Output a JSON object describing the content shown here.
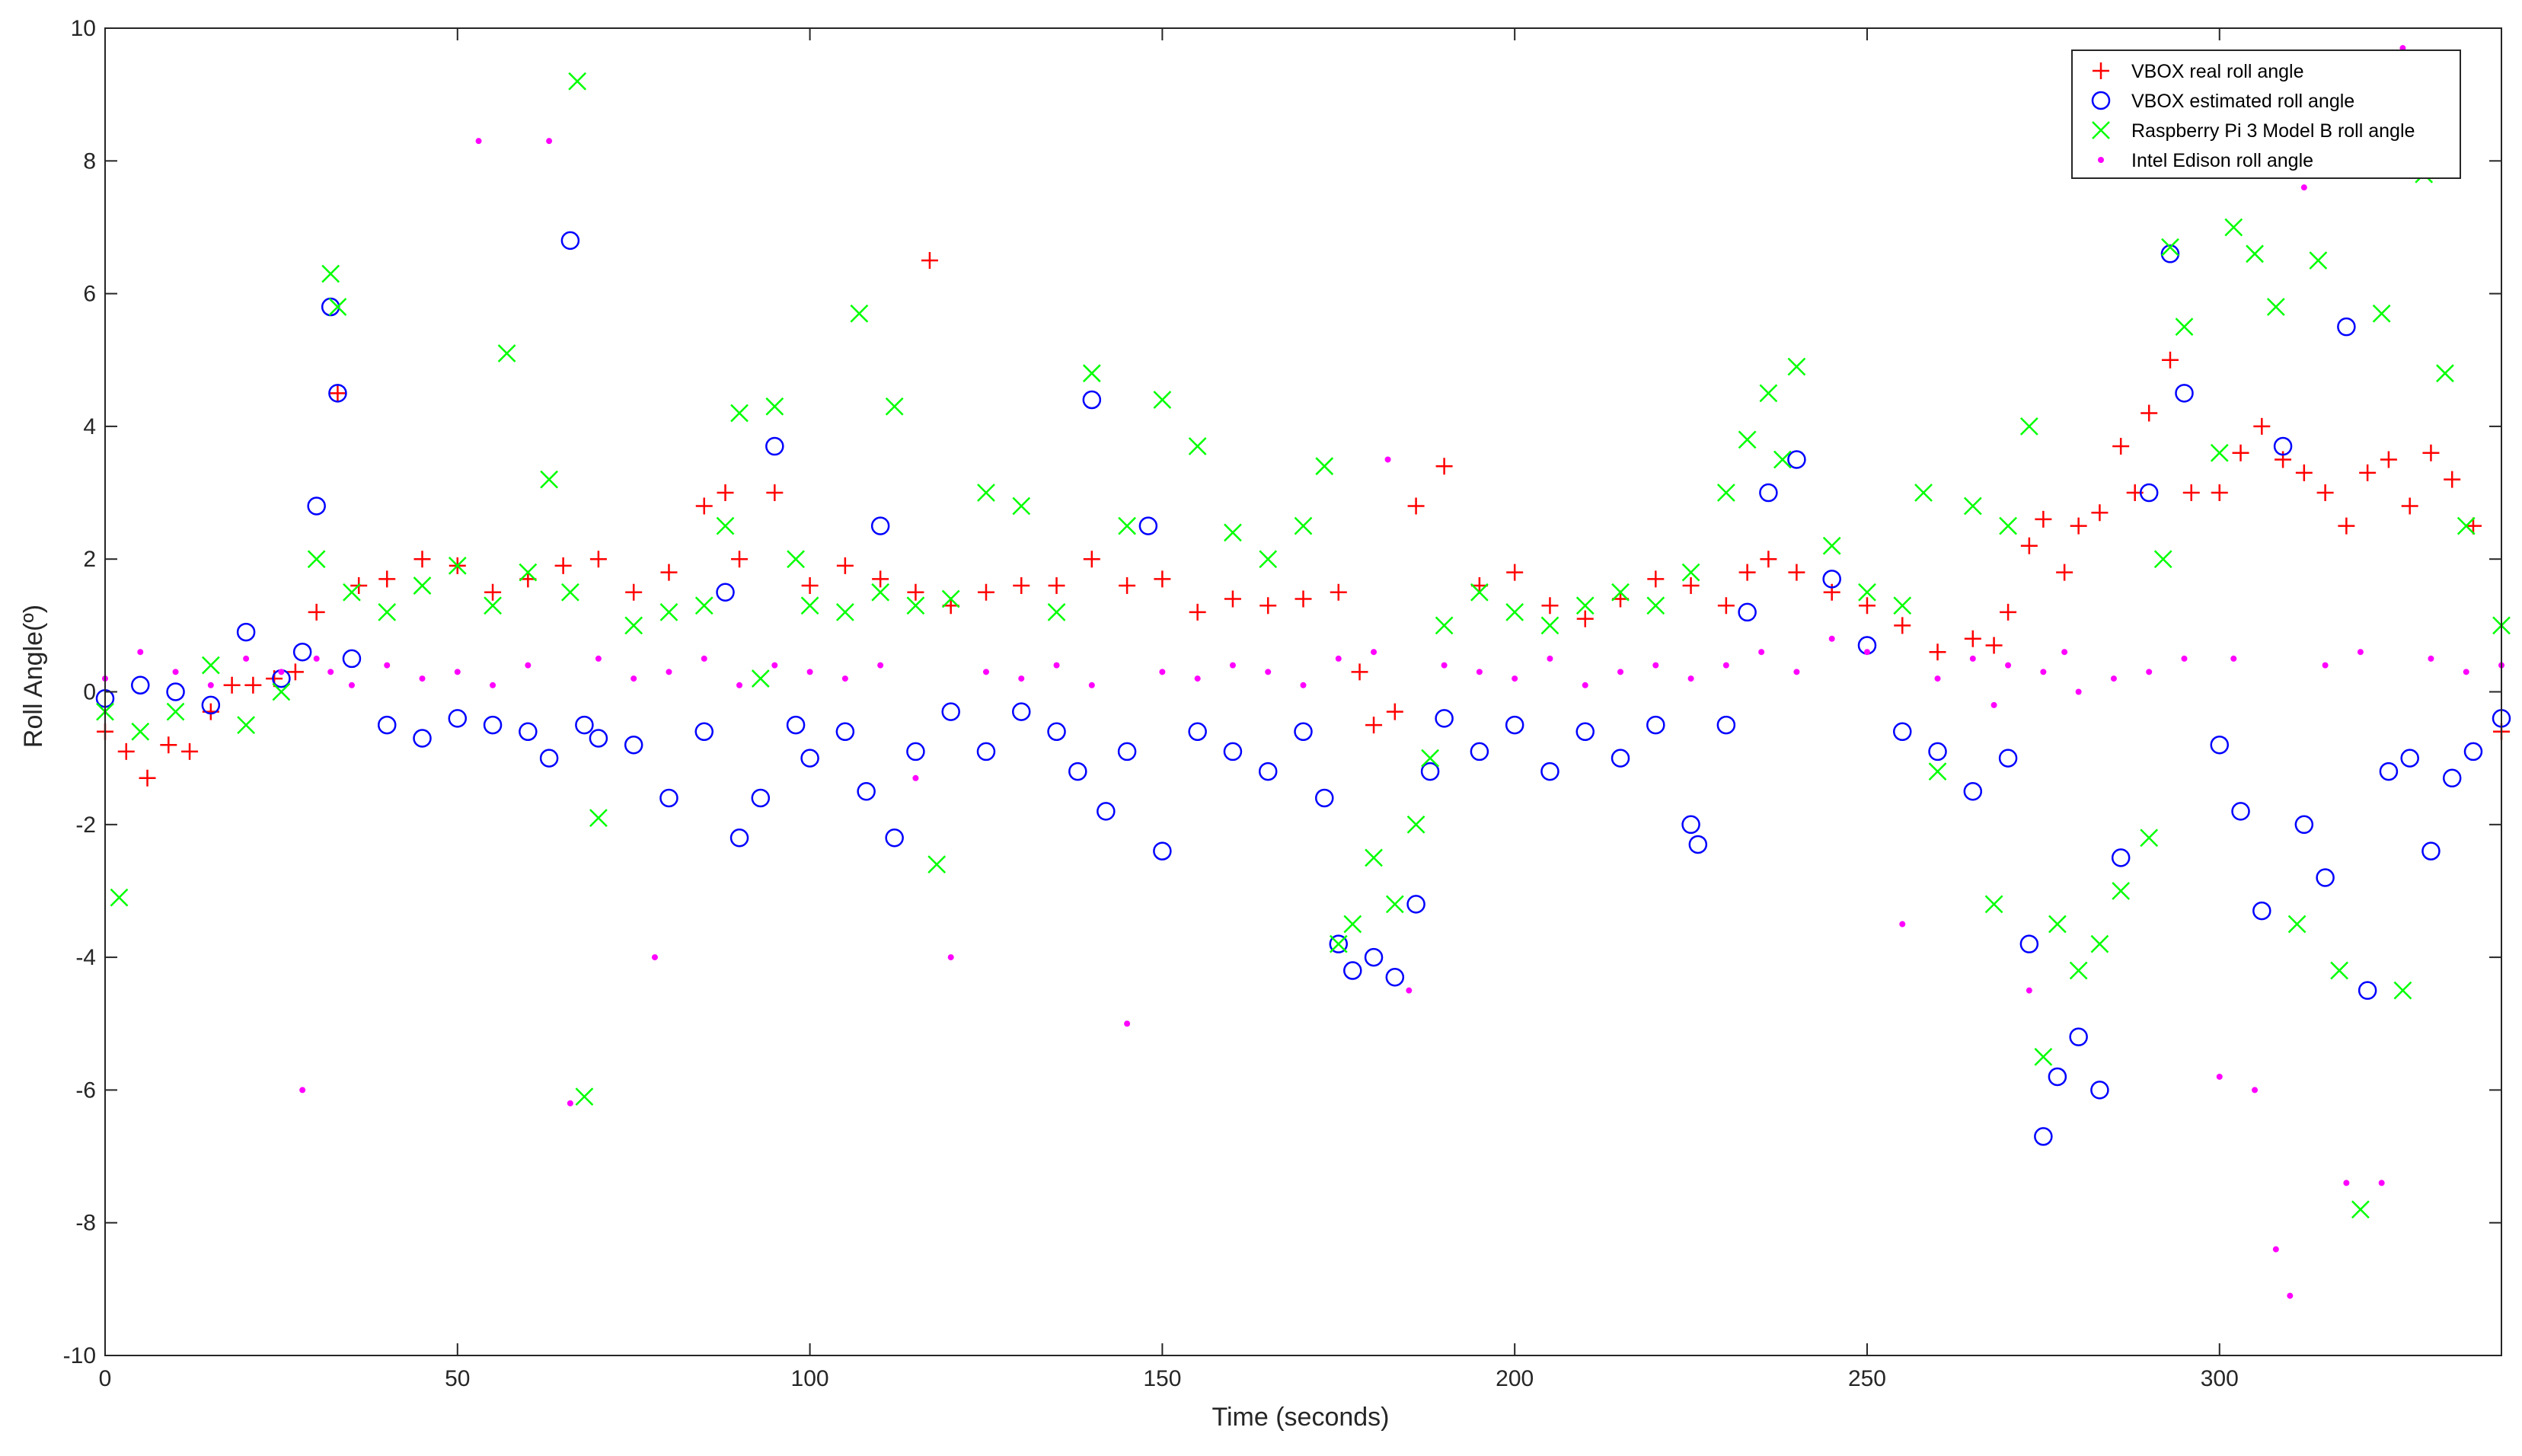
{
  "chart_data": {
    "type": "scatter",
    "title": "",
    "xlabel": "Time (seconds)",
    "ylabel": "Roll Angle(º)",
    "xlim": [
      0,
      340
    ],
    "ylim": [
      -10,
      10
    ],
    "xticks": [
      0,
      50,
      100,
      150,
      200,
      250,
      300
    ],
    "yticks": [
      -10,
      -8,
      -6,
      -4,
      -2,
      0,
      2,
      4,
      6,
      8,
      10
    ],
    "grid": false,
    "legend_position": "top-right",
    "series": [
      {
        "name": "VBOX real roll angle",
        "marker": "+",
        "color": "#ff0000",
        "x": [
          0,
          3,
          6,
          9,
          12,
          15,
          18,
          21,
          24,
          27,
          30,
          33,
          36,
          40,
          45,
          50,
          55,
          60,
          65,
          70,
          75,
          80,
          85,
          88,
          90,
          95,
          100,
          105,
          110,
          115,
          117,
          120,
          125,
          130,
          135,
          140,
          145,
          150,
          155,
          160,
          165,
          170,
          175,
          178,
          180,
          183,
          186,
          190,
          195,
          200,
          205,
          210,
          215,
          220,
          225,
          230,
          233,
          236,
          240,
          245,
          250,
          255,
          260,
          265,
          268,
          270,
          273,
          275,
          278,
          280,
          283,
          286,
          288,
          290,
          293,
          296,
          300,
          303,
          306,
          309,
          312,
          315,
          318,
          321,
          324,
          327,
          330,
          333,
          336,
          340
        ],
        "y": [
          -0.6,
          -0.9,
          -1.3,
          -0.8,
          -0.9,
          -0.3,
          0.1,
          0.1,
          0.2,
          0.3,
          1.2,
          4.5,
          1.6,
          1.7,
          2.0,
          1.9,
          1.5,
          1.7,
          1.9,
          2.0,
          1.5,
          1.8,
          2.8,
          3.0,
          2.0,
          3.0,
          1.6,
          1.9,
          1.7,
          1.5,
          6.5,
          1.3,
          1.5,
          1.6,
          1.6,
          2.0,
          1.6,
          1.7,
          1.2,
          1.4,
          1.3,
          1.4,
          1.5,
          0.3,
          -0.5,
          -0.3,
          2.8,
          3.4,
          1.6,
          1.8,
          1.3,
          1.1,
          1.4,
          1.7,
          1.6,
          1.3,
          1.8,
          2.0,
          1.8,
          1.5,
          1.3,
          1.0,
          0.6,
          0.8,
          0.7,
          1.2,
          2.2,
          2.6,
          1.8,
          2.5,
          2.7,
          3.7,
          3.0,
          4.2,
          5.0,
          3.0,
          3.0,
          3.6,
          4.0,
          3.5,
          3.3,
          3.0,
          2.5,
          3.3,
          3.5,
          2.8,
          3.6,
          3.2,
          2.5,
          -0.6
        ]
      },
      {
        "name": "VBOX  estimated roll angle",
        "marker": "o",
        "color": "#0000ff",
        "x": [
          0,
          5,
          10,
          15,
          20,
          25,
          28,
          30,
          32,
          33,
          35,
          40,
          45,
          50,
          55,
          60,
          63,
          66,
          68,
          70,
          75,
          80,
          85,
          88,
          90,
          93,
          95,
          98,
          100,
          105,
          108,
          110,
          112,
          115,
          120,
          125,
          130,
          135,
          138,
          140,
          142,
          145,
          148,
          150,
          155,
          160,
          165,
          170,
          173,
          175,
          177,
          180,
          183,
          186,
          188,
          190,
          195,
          200,
          205,
          210,
          215,
          220,
          225,
          226,
          230,
          233,
          236,
          240,
          245,
          250,
          255,
          260,
          265,
          270,
          273,
          275,
          277,
          280,
          283,
          286,
          290,
          293,
          295,
          300,
          303,
          306,
          309,
          312,
          315,
          318,
          321,
          324,
          327,
          330,
          333,
          336,
          340
        ],
        "y": [
          -0.1,
          0.1,
          0.0,
          -0.2,
          0.9,
          0.2,
          0.6,
          2.8,
          5.8,
          4.5,
          0.5,
          -0.5,
          -0.7,
          -0.4,
          -0.5,
          -0.6,
          -1.0,
          6.8,
          -0.5,
          -0.7,
          -0.8,
          -1.6,
          -0.6,
          1.5,
          -2.2,
          -1.6,
          3.7,
          -0.5,
          -1.0,
          -0.6,
          -1.5,
          2.5,
          -2.2,
          -0.9,
          -0.3,
          -0.9,
          -0.3,
          -0.6,
          -1.2,
          4.4,
          -1.8,
          -0.9,
          2.5,
          -2.4,
          -0.6,
          -0.9,
          -1.2,
          -0.6,
          -1.6,
          -3.8,
          -4.2,
          -4.0,
          -4.3,
          -3.2,
          -1.2,
          -0.4,
          -0.9,
          -0.5,
          -1.2,
          -0.6,
          -1.0,
          -0.5,
          -2.0,
          -2.3,
          -0.5,
          1.2,
          3.0,
          3.5,
          1.7,
          0.7,
          -0.6,
          -0.9,
          -1.5,
          -1.0,
          -3.8,
          -6.7,
          -5.8,
          -5.2,
          -6.0,
          -2.5,
          3.0,
          6.6,
          4.5,
          -0.8,
          -1.8,
          -3.3,
          3.7,
          -2.0,
          -2.8,
          5.5,
          -4.5,
          -1.2,
          -1.0,
          -2.4,
          -1.3,
          -0.9,
          -0.4
        ]
      },
      {
        "name": "Raspberry Pi 3 Model B roll angle",
        "marker": "x",
        "color": "#00ff00",
        "x": [
          0,
          2,
          5,
          10,
          15,
          20,
          25,
          30,
          32,
          33,
          35,
          40,
          45,
          50,
          55,
          57,
          60,
          63,
          66,
          67,
          68,
          70,
          75,
          80,
          85,
          88,
          90,
          93,
          95,
          98,
          100,
          105,
          107,
          110,
          112,
          115,
          118,
          120,
          125,
          130,
          135,
          140,
          145,
          150,
          155,
          160,
          165,
          170,
          173,
          175,
          177,
          180,
          183,
          186,
          188,
          190,
          195,
          200,
          205,
          210,
          215,
          220,
          225,
          230,
          233,
          236,
          238,
          240,
          245,
          250,
          255,
          258,
          260,
          265,
          268,
          270,
          273,
          275,
          277,
          280,
          283,
          286,
          290,
          292,
          293,
          295,
          300,
          302,
          305,
          308,
          311,
          314,
          317,
          320,
          323,
          326,
          329,
          332,
          335,
          340
        ],
        "y": [
          -0.3,
          -3.1,
          -0.6,
          -0.3,
          0.4,
          -0.5,
          0.0,
          2.0,
          6.3,
          5.8,
          1.5,
          1.2,
          1.6,
          1.9,
          1.3,
          5.1,
          1.8,
          3.2,
          1.5,
          9.2,
          -6.1,
          -1.9,
          1.0,
          1.2,
          1.3,
          2.5,
          4.2,
          0.2,
          4.3,
          2.0,
          1.3,
          1.2,
          5.7,
          1.5,
          4.3,
          1.3,
          -2.6,
          1.4,
          3.0,
          2.8,
          1.2,
          4.8,
          2.5,
          4.4,
          3.7,
          2.4,
          2.0,
          2.5,
          3.4,
          -3.8,
          -3.5,
          -2.5,
          -3.2,
          -2.0,
          -1.0,
          1.0,
          1.5,
          1.2,
          1.0,
          1.3,
          1.5,
          1.3,
          1.8,
          3.0,
          3.8,
          4.5,
          3.5,
          4.9,
          2.2,
          1.5,
          1.3,
          3.0,
          -1.2,
          2.8,
          -3.2,
          2.5,
          4.0,
          -5.5,
          -3.5,
          -4.2,
          -3.8,
          -3.0,
          -2.2,
          2.0,
          6.7,
          5.5,
          3.6,
          7.0,
          6.6,
          5.8,
          -3.5,
          6.5,
          -4.2,
          -7.8,
          5.7,
          -4.5,
          7.8,
          4.8,
          2.5,
          1.0
        ]
      },
      {
        "name": "Intel Edison roll angle",
        "marker": ".",
        "color": "#ff00ff",
        "x": [
          0,
          5,
          10,
          15,
          20,
          25,
          28,
          30,
          32,
          35,
          40,
          45,
          50,
          53,
          55,
          60,
          63,
          66,
          70,
          75,
          78,
          80,
          85,
          90,
          95,
          100,
          105,
          110,
          115,
          120,
          125,
          130,
          135,
          140,
          145,
          150,
          155,
          160,
          165,
          170,
          175,
          180,
          182,
          185,
          190,
          195,
          200,
          205,
          210,
          215,
          220,
          225,
          230,
          235,
          240,
          245,
          250,
          255,
          260,
          265,
          268,
          270,
          273,
          275,
          278,
          280,
          285,
          290,
          295,
          300,
          302,
          305,
          308,
          310,
          312,
          315,
          318,
          320,
          323,
          326,
          330,
          335,
          340
        ],
        "y": [
          0.2,
          0.6,
          0.3,
          0.1,
          0.5,
          0.3,
          -6.0,
          0.5,
          0.3,
          0.1,
          0.4,
          0.2,
          0.3,
          8.3,
          0.1,
          0.4,
          8.3,
          -6.2,
          0.5,
          0.2,
          -4.0,
          0.3,
          0.5,
          0.1,
          0.4,
          0.3,
          0.2,
          0.4,
          -1.3,
          -4.0,
          0.3,
          0.2,
          0.4,
          0.1,
          -5.0,
          0.3,
          0.2,
          0.4,
          0.3,
          0.1,
          0.5,
          0.6,
          3.5,
          -4.5,
          0.4,
          0.3,
          0.2,
          0.5,
          0.1,
          0.3,
          0.4,
          0.2,
          0.4,
          0.6,
          0.3,
          0.8,
          0.6,
          -3.5,
          0.2,
          0.5,
          -0.2,
          0.4,
          -4.5,
          0.3,
          0.6,
          0.0,
          0.2,
          0.3,
          0.5,
          -5.8,
          0.5,
          -6.0,
          -8.4,
          -9.1,
          7.6,
          0.4,
          -7.4,
          0.6,
          -7.4,
          9.7,
          0.5,
          0.3,
          0.4
        ]
      }
    ]
  }
}
